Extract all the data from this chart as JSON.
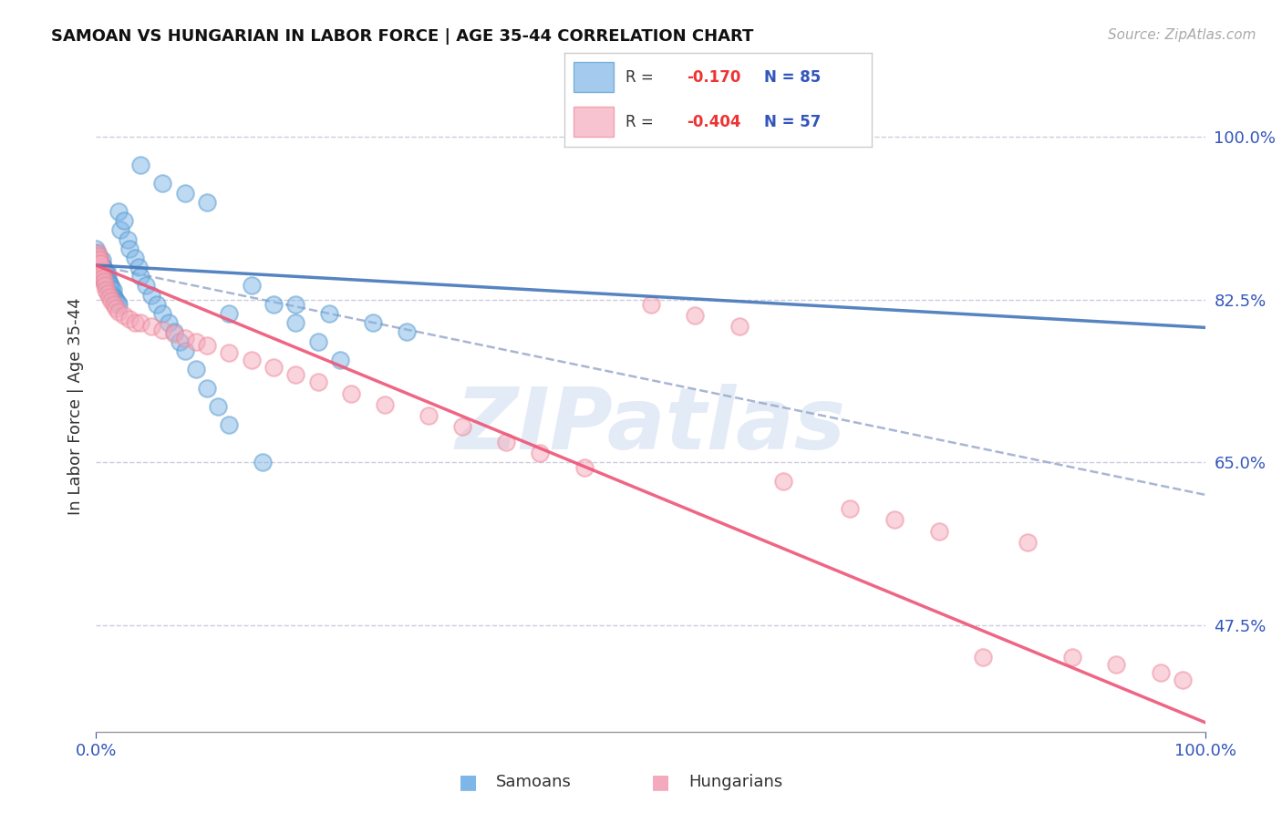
{
  "title": "SAMOAN VS HUNGARIAN IN LABOR FORCE | AGE 35-44 CORRELATION CHART",
  "source": "Source: ZipAtlas.com",
  "ylabel": "In Labor Force | Age 35-44",
  "legend_label1": "Samoans",
  "legend_label2": "Hungarians",
  "r1": -0.17,
  "n1": 85,
  "r2": -0.404,
  "n2": 57,
  "blue_color": "#7EB6E8",
  "pink_color": "#F4AABC",
  "blue_edge_color": "#5599CC",
  "pink_edge_color": "#EE8899",
  "blue_line_color": "#4477BB",
  "pink_line_color": "#EE5577",
  "dashed_line_color": "#99AACC",
  "ytick_values": [
    0.475,
    0.65,
    0.825,
    1.0
  ],
  "ytick_labels": [
    "47.5%",
    "65.0%",
    "82.5%",
    "100.0%"
  ],
  "xtick_values": [
    0.0,
    1.0
  ],
  "xtick_labels": [
    "0.0%",
    "100.0%"
  ],
  "xlim": [
    0.0,
    1.0
  ],
  "ylim": [
    0.36,
    1.06
  ],
  "blue_line_y0": 0.862,
  "blue_line_y1": 0.795,
  "pink_line_y0": 0.862,
  "pink_line_y1": 0.37,
  "dash_line_y0": 0.862,
  "dash_line_y1": 0.615,
  "watermark_text": "ZIPatlas",
  "watermark_color": "#C8D8EE",
  "watermark_alpha": 0.5
}
